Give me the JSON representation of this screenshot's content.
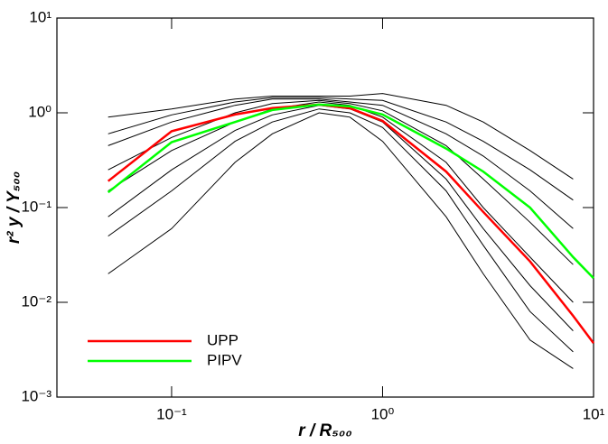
{
  "chart_data": {
    "type": "line",
    "xlabel": "r / R₅₀₀",
    "ylabel": "r² y / Y₅₀₀",
    "xlog": true,
    "ylog": true,
    "xlim": [
      0.0286,
      10
    ],
    "ylim": [
      0.001,
      10
    ],
    "xticks": [
      {
        "value": 0.1,
        "label": "10⁻¹"
      },
      {
        "value": 1,
        "label": "10⁰"
      },
      {
        "value": 10,
        "label": "10¹"
      }
    ],
    "yticks": [
      {
        "value": 0.001,
        "label": "10⁻³"
      },
      {
        "value": 0.01,
        "label": "10⁻²"
      },
      {
        "value": 0.1,
        "label": "10⁻¹"
      },
      {
        "value": 1,
        "label": "10⁰"
      },
      {
        "value": 10,
        "label": "10¹"
      }
    ],
    "legend": "lower left",
    "x": [
      0.05,
      0.1,
      0.2,
      0.3,
      0.5,
      0.7,
      1,
      2,
      3,
      5,
      8,
      10
    ],
    "series": [
      {
        "color": "#000000",
        "values": [
          0.9,
          1.1,
          1.4,
          1.5,
          1.5,
          1.5,
          1.6,
          1.2,
          0.8,
          0.4,
          0.2,
          null
        ]
      },
      {
        "color": "#000000",
        "values": [
          0.6,
          0.95,
          1.3,
          1.45,
          1.45,
          1.4,
          1.35,
          0.8,
          0.5,
          0.25,
          0.12,
          null
        ]
      },
      {
        "color": "#000000",
        "values": [
          0.45,
          0.8,
          1.2,
          1.4,
          1.4,
          1.3,
          1.2,
          0.6,
          0.35,
          0.15,
          0.06,
          null
        ]
      },
      {
        "color": "#000000",
        "values": [
          0.25,
          0.55,
          1.0,
          1.25,
          1.35,
          1.25,
          1.05,
          0.45,
          0.2,
          0.07,
          0.025,
          null
        ]
      },
      {
        "color": "#000000",
        "values": [
          0.15,
          0.4,
          0.8,
          1.1,
          1.3,
          1.2,
          0.9,
          0.3,
          0.1,
          0.03,
          0.01,
          null
        ]
      },
      {
        "color": "#000000",
        "values": [
          0.08,
          0.25,
          0.65,
          0.95,
          1.2,
          1.1,
          0.8,
          0.2,
          0.06,
          0.015,
          0.005,
          null
        ]
      },
      {
        "color": "#000000",
        "values": [
          0.05,
          0.15,
          0.5,
          0.8,
          1.1,
          1.0,
          0.7,
          0.15,
          0.04,
          0.008,
          0.003,
          null
        ]
      },
      {
        "color": "#000000",
        "values": [
          0.02,
          0.06,
          0.3,
          0.6,
          1.0,
          0.9,
          0.5,
          0.08,
          0.02,
          0.004,
          0.002,
          null
        ]
      },
      {
        "name": "UPP",
        "color": "#ff0000",
        "values": [
          0.19,
          0.64,
          0.96,
          1.12,
          1.22,
          1.12,
          0.82,
          0.24,
          0.09,
          0.027,
          0.0072,
          0.0037
        ]
      },
      {
        "name": "PIPV",
        "color": "#00ff00",
        "values": [
          0.145,
          0.49,
          0.8,
          1.07,
          1.22,
          1.17,
          0.96,
          0.42,
          0.24,
          0.1,
          0.03,
          0.018
        ]
      }
    ]
  }
}
